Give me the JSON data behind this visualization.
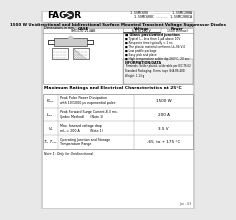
{
  "bg_color": "#e8e8e8",
  "page_bg": "#f2f2f2",
  "content_bg": "#ffffff",
  "title_bg": "#c8c8c8",
  "title_text": "1500 W Unidirectional and bidirectional Surface Mounted Transient Voltage Suppressor Diodes",
  "header_logo": "FAGOR",
  "part_numbers_right": [
    "1.5SMC6V8 .......... 1.5SMC200A",
    "1.5SMC6V8C ...... 1.5SMC200CA"
  ],
  "section_title": "Maximum Ratings and Electrical Characteristics at 25°C",
  "table_rows": [
    {
      "symbol": "Pₚₚₖ",
      "description": "Peak Pulse Power Dissipation\nwith 10/1000 μs exponential pulse",
      "value": "1500 W"
    },
    {
      "symbol": "Iₚₚₖ",
      "description": "Peak Forward Surge Current,8.3 ms.\n(Jedec Method)      (Note 1)",
      "value": "200 A"
    },
    {
      "symbol": "Vₑ",
      "description": "Max. forward voltage drop\nmIₙ = 200 A          (Note 1)",
      "value": "3.5 V"
    },
    {
      "symbol": "Tⱼ, Tₛₜₛ",
      "description": "Operating Junction and Storage\nTemperature Range",
      "value": "-65  to + 175 °C"
    }
  ],
  "note": "Note 1: Only for Unidirectional",
  "case_label": "CASE",
  "case_sub": "SMC/DO-214AB",
  "voltage_label": "Voltage",
  "voltage_val": "6.8 to 200 V",
  "power_label": "Power",
  "power_val": "1500 W(max)",
  "features_title": "Glass passivated junction",
  "features": [
    "Typical Iₗₓₖ less than 1 μA above 10V",
    "Response time typically < 1 ns",
    "The plastic material conforms UL-94 V-0",
    "Low profile package",
    "Easy pick and place",
    "High temperature solder dip 260°C, 20 sec."
  ],
  "info_title": "INFORMATION/DATA",
  "info_text": "Terminals: Solder plated, solderable per IEC-TS-62\nStandard Packaging: 8 mm. tape (EIA-RS-481)\nWeight: 1.13 g",
  "footer": "Jun - 03",
  "dim_label": "Dimensions in mm."
}
